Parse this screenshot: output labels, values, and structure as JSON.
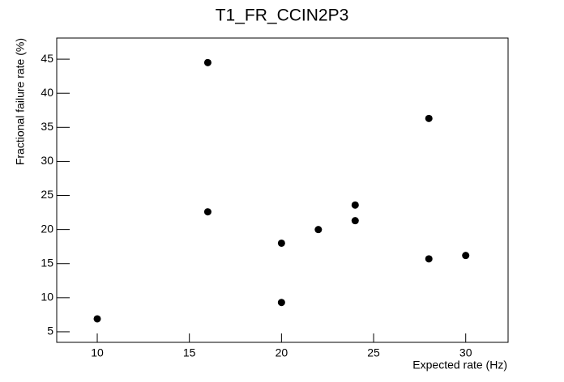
{
  "chart_data": {
    "type": "scatter",
    "title": "T1_FR_CCIN2P3",
    "x_label": "Expected rate (Hz)",
    "y_label": "Fractional failure rate (%)",
    "x": [
      10,
      16,
      16,
      20,
      20,
      22,
      24,
      24,
      28,
      28,
      30
    ],
    "values": [
      6.9,
      44.5,
      22.6,
      18.0,
      9.3,
      20.0,
      23.6,
      21.3,
      36.3,
      15.7,
      16.2
    ],
    "color": "#000000",
    "xlim": [
      7.8,
      32.3
    ],
    "xticks": [
      10,
      15,
      20,
      25,
      30
    ],
    "ylim": [
      3.45,
      48.1
    ],
    "yticks": [
      5,
      10,
      15,
      20,
      25,
      30,
      35,
      40,
      45
    ],
    "grid": false
  }
}
